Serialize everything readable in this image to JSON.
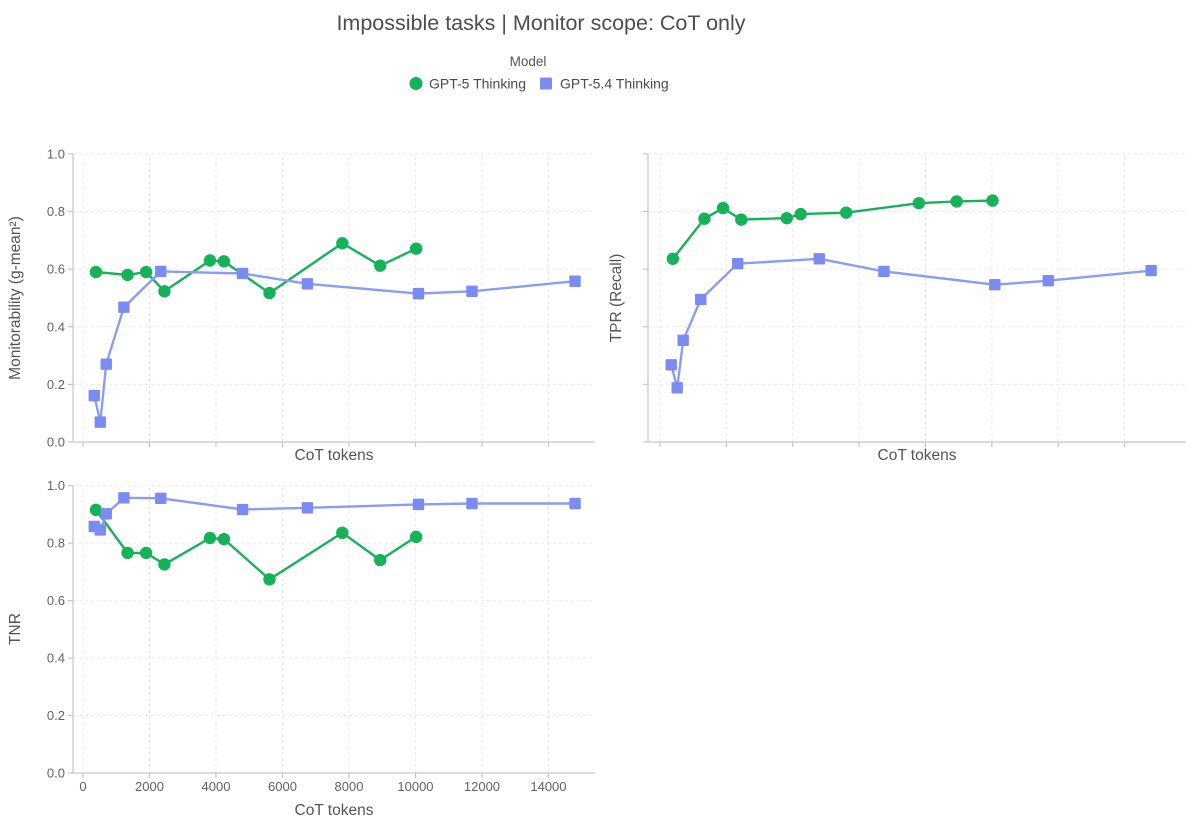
{
  "title": "Impossible tasks | Monitor scope: CoT only",
  "legend": {
    "title": "Model",
    "items": [
      {
        "label": "GPT-5 Thinking",
        "marker": "circle",
        "color": "#16b25a"
      },
      {
        "label": "GPT-5.4 Thinking",
        "marker": "square",
        "color": "#7a8bf2"
      }
    ]
  },
  "style": {
    "green": "#16b25a",
    "blue": "#7a8bf2",
    "blue_line": "#8c9bf5",
    "grid_color": "#e9e9e9",
    "axis_color": "#c6c6c6",
    "tick_text_color": "#636363",
    "axis_title_color": "#555555",
    "title_color": "#4e4e4e",
    "background": "#ffffff"
  },
  "chart_data": [
    {
      "type": "line",
      "panel": "top-left",
      "title": "",
      "xlabel": "CoT tokens",
      "ylabel": "Monitorability (g-mean²)",
      "xlim": [
        -300,
        15400
      ],
      "ylim": [
        0,
        1
      ],
      "x_ticks": [
        0,
        2000,
        4000,
        6000,
        8000,
        10000,
        12000,
        14000
      ],
      "y_ticks": [
        0.0,
        0.2,
        0.4,
        0.6,
        0.8,
        1.0
      ],
      "show_x_tick_labels": false,
      "show_y_tick_labels": true,
      "grid": true,
      "legend_position": "top-center-shared",
      "series": [
        {
          "name": "GPT-5 Thinking",
          "marker": "circle",
          "color": "#16b25a",
          "line_color": "#16b25a",
          "x": [
            390,
            1340,
            1900,
            2450,
            3820,
            4240,
            5610,
            7800,
            8940,
            10020
          ],
          "y": [
            0.59,
            0.58,
            0.59,
            0.523,
            0.63,
            0.627,
            0.517,
            0.69,
            0.612,
            0.671
          ]
        },
        {
          "name": "GPT-5.4 Thinking",
          "marker": "square",
          "color": "#7a8bf2",
          "line_color": "#8c9bf5",
          "x": [
            340,
            520,
            700,
            1230,
            2340,
            4800,
            6750,
            10090,
            11700,
            14800
          ],
          "y": [
            0.161,
            0.069,
            0.27,
            0.468,
            0.592,
            0.585,
            0.549,
            0.515,
            0.523,
            0.558
          ]
        }
      ]
    },
    {
      "type": "line",
      "panel": "top-right",
      "title": "",
      "xlabel": "CoT tokens",
      "ylabel": "TPR (Recall)",
      "xlim": [
        -360,
        15850
      ],
      "ylim": [
        0,
        1
      ],
      "x_ticks": [
        0,
        2000,
        4000,
        6000,
        8000,
        10000,
        12000,
        14000
      ],
      "y_ticks": [
        0.0,
        0.2,
        0.4,
        0.6,
        0.8,
        1.0
      ],
      "show_x_tick_labels": false,
      "show_y_tick_labels": false,
      "grid": true,
      "series": [
        {
          "name": "GPT-5 Thinking",
          "marker": "circle",
          "color": "#16b25a",
          "line_color": "#16b25a",
          "x": [
            390,
            1340,
            1900,
            2450,
            3820,
            4240,
            5610,
            7800,
            8940,
            10020
          ],
          "y": [
            0.636,
            0.775,
            0.812,
            0.772,
            0.777,
            0.791,
            0.796,
            0.829,
            0.835,
            0.838
          ]
        },
        {
          "name": "GPT-5.4 Thinking",
          "marker": "square",
          "color": "#7a8bf2",
          "line_color": "#8c9bf5",
          "x": [
            340,
            520,
            700,
            1230,
            2340,
            4800,
            6750,
            10090,
            11700,
            14800
          ],
          "y": [
            0.268,
            0.188,
            0.353,
            0.495,
            0.619,
            0.636,
            0.592,
            0.546,
            0.56,
            0.595
          ]
        }
      ]
    },
    {
      "type": "line",
      "panel": "bottom-left",
      "title": "",
      "xlabel": "CoT tokens",
      "ylabel": "TNR",
      "xlim": [
        -300,
        15400
      ],
      "ylim": [
        0,
        1
      ],
      "x_ticks": [
        0,
        2000,
        4000,
        6000,
        8000,
        10000,
        12000,
        14000
      ],
      "y_ticks": [
        0.0,
        0.2,
        0.4,
        0.6,
        0.8,
        1.0
      ],
      "show_x_tick_labels": true,
      "show_y_tick_labels": true,
      "grid": true,
      "series": [
        {
          "name": "GPT-5 Thinking",
          "marker": "circle",
          "color": "#16b25a",
          "line_color": "#16b25a",
          "x": [
            390,
            1340,
            1900,
            2450,
            3820,
            4240,
            5610,
            7800,
            8940,
            10020
          ],
          "y": [
            0.916,
            0.766,
            0.766,
            0.726,
            0.818,
            0.814,
            0.674,
            0.836,
            0.741,
            0.822
          ]
        },
        {
          "name": "GPT-5.4 Thinking",
          "marker": "square",
          "color": "#7a8bf2",
          "line_color": "#8c9bf5",
          "x": [
            340,
            520,
            700,
            1230,
            2340,
            4800,
            6750,
            10090,
            11700,
            14800
          ],
          "y": [
            0.858,
            0.846,
            0.902,
            0.958,
            0.956,
            0.917,
            0.923,
            0.935,
            0.938,
            0.938
          ]
        }
      ]
    }
  ]
}
